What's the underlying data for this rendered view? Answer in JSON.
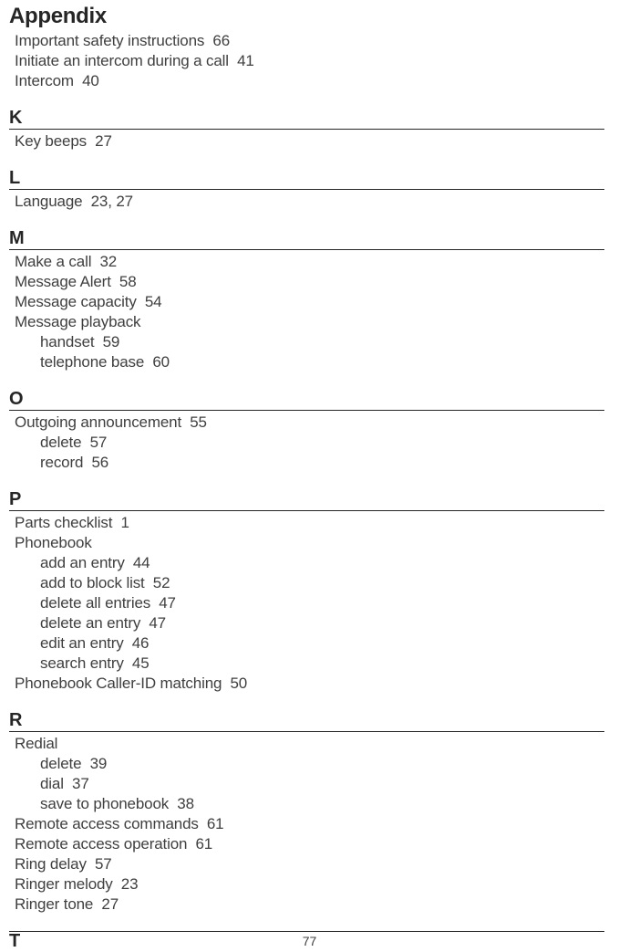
{
  "title": "Appendix",
  "pageNumber": "77",
  "sections": [
    {
      "letter": null,
      "rule": false,
      "entries": [
        {
          "label": "Important safety instructions",
          "pages": "66",
          "indent": 0
        },
        {
          "label": "Initiate an intercom during a call",
          "pages": "41",
          "indent": 0
        },
        {
          "label": "Intercom",
          "pages": "40",
          "indent": 0
        }
      ]
    },
    {
      "letter": "K",
      "rule": true,
      "entries": [
        {
          "label": "Key beeps",
          "pages": "27",
          "indent": 0
        }
      ]
    },
    {
      "letter": "L",
      "rule": true,
      "entries": [
        {
          "label": "Language",
          "pages": "23, 27",
          "indent": 0
        }
      ]
    },
    {
      "letter": "M",
      "rule": true,
      "entries": [
        {
          "label": "Make a call",
          "pages": "32",
          "indent": 0
        },
        {
          "label": "Message Alert",
          "pages": "58",
          "indent": 0
        },
        {
          "label": "Message capacity",
          "pages": "54",
          "indent": 0
        },
        {
          "label": "Message playback",
          "pages": "",
          "indent": 0
        },
        {
          "label": "handset",
          "pages": "59",
          "indent": 1
        },
        {
          "label": "telephone base",
          "pages": "60",
          "indent": 1
        }
      ]
    },
    {
      "letter": "O",
      "rule": true,
      "entries": [
        {
          "label": "Outgoing announcement",
          "pages": "55",
          "indent": 0
        },
        {
          "label": "delete",
          "pages": "57",
          "indent": 1
        },
        {
          "label": "record",
          "pages": "56",
          "indent": 1
        }
      ]
    },
    {
      "letter": "P",
      "rule": true,
      "entries": [
        {
          "label": "Parts checklist",
          "pages": "1",
          "indent": 0
        },
        {
          "label": "Phonebook",
          "pages": "",
          "indent": 0
        },
        {
          "label": "add an entry",
          "pages": "44",
          "indent": 1
        },
        {
          "label": "add to block list",
          "pages": "52",
          "indent": 1
        },
        {
          "label": "delete all entries",
          "pages": "47",
          "indent": 1
        },
        {
          "label": "delete an entry",
          "pages": "47",
          "indent": 1
        },
        {
          "label": "edit an entry",
          "pages": "46",
          "indent": 1
        },
        {
          "label": "search entry",
          "pages": "45",
          "indent": 1
        },
        {
          "label": "Phonebook Caller-ID matching",
          "pages": "50",
          "indent": 0
        }
      ]
    },
    {
      "letter": "R",
      "rule": true,
      "entries": [
        {
          "label": "Redial",
          "pages": "",
          "indent": 0
        },
        {
          "label": "delete",
          "pages": "39",
          "indent": 1
        },
        {
          "label": "dial",
          "pages": "37",
          "indent": 1
        },
        {
          "label": "save to phonebook",
          "pages": "38",
          "indent": 1
        },
        {
          "label": "Remote access commands",
          "pages": "61",
          "indent": 0
        },
        {
          "label": "Remote access operation",
          "pages": "61",
          "indent": 0
        },
        {
          "label": "Ring delay",
          "pages": "57",
          "indent": 0
        },
        {
          "label": "Ringer melody",
          "pages": "23",
          "indent": 0
        },
        {
          "label": "Ringer tone",
          "pages": "27",
          "indent": 0
        }
      ]
    },
    {
      "letter": "T",
      "rule": false,
      "entries": []
    }
  ]
}
